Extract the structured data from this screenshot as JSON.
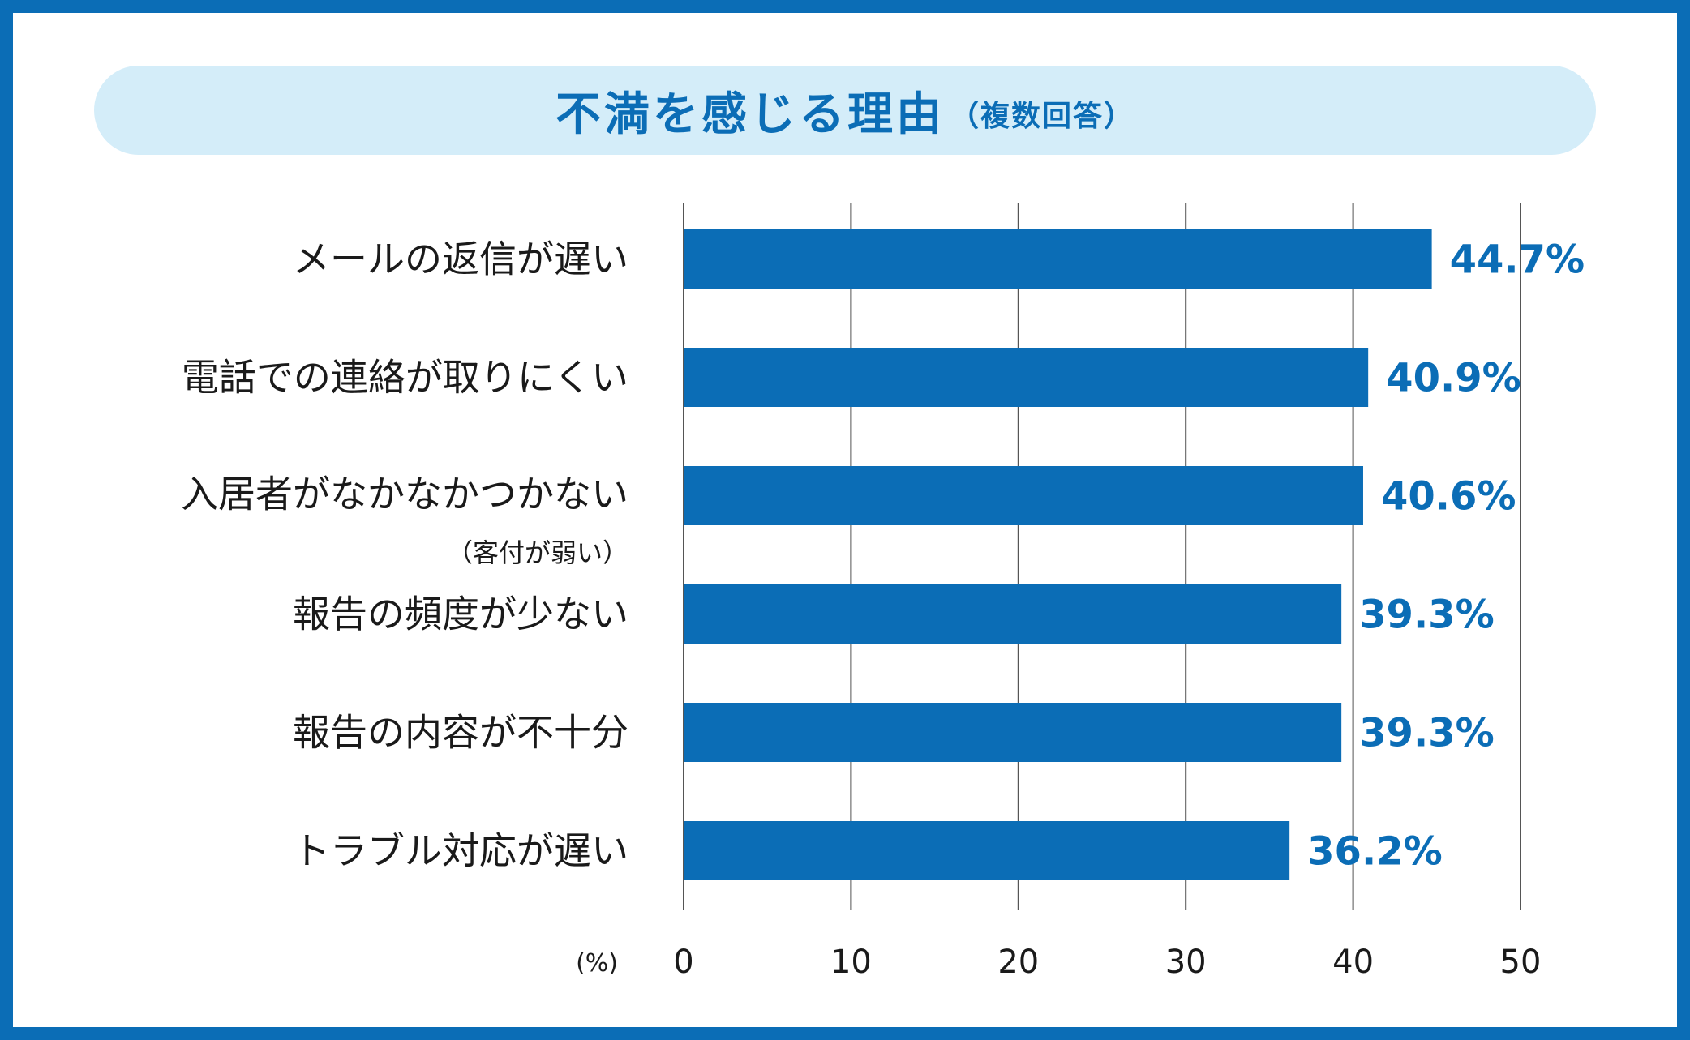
{
  "title": {
    "main": "不満を感じる理由",
    "sub": "（複数回答）"
  },
  "colors": {
    "frame": "#0b6db6",
    "bar": "#0b6db6",
    "title_bg": "#d4edf9",
    "title_text": "#0b6db6",
    "value_text": "#0b6db6",
    "grid": "#555555"
  },
  "chart_data": {
    "type": "bar",
    "orientation": "horizontal",
    "title": "不満を感じる理由（複数回答）",
    "categories": [
      "メールの返信が遅い",
      "電話での連絡が取りにくい",
      "入居者がなかなかつかない",
      "報告の頻度が少ない",
      "報告の内容が不十分",
      "トラブル対応が遅い"
    ],
    "category_sublabels": [
      "",
      "",
      "（客付が弱い）",
      "",
      "",
      ""
    ],
    "values": [
      44.7,
      40.9,
      40.6,
      39.3,
      39.3,
      36.2
    ],
    "value_labels": [
      "44.7%",
      "40.9%",
      "40.6%",
      "39.3%",
      "39.3%",
      "36.2%"
    ],
    "xlim": [
      0,
      50
    ],
    "xticks": [
      0,
      10,
      20,
      30,
      40,
      50
    ],
    "xtick_labels": [
      "0",
      "10",
      "20",
      "30",
      "40",
      "50"
    ],
    "xunit": "(%)",
    "grid": "vertical",
    "legend": "none"
  }
}
